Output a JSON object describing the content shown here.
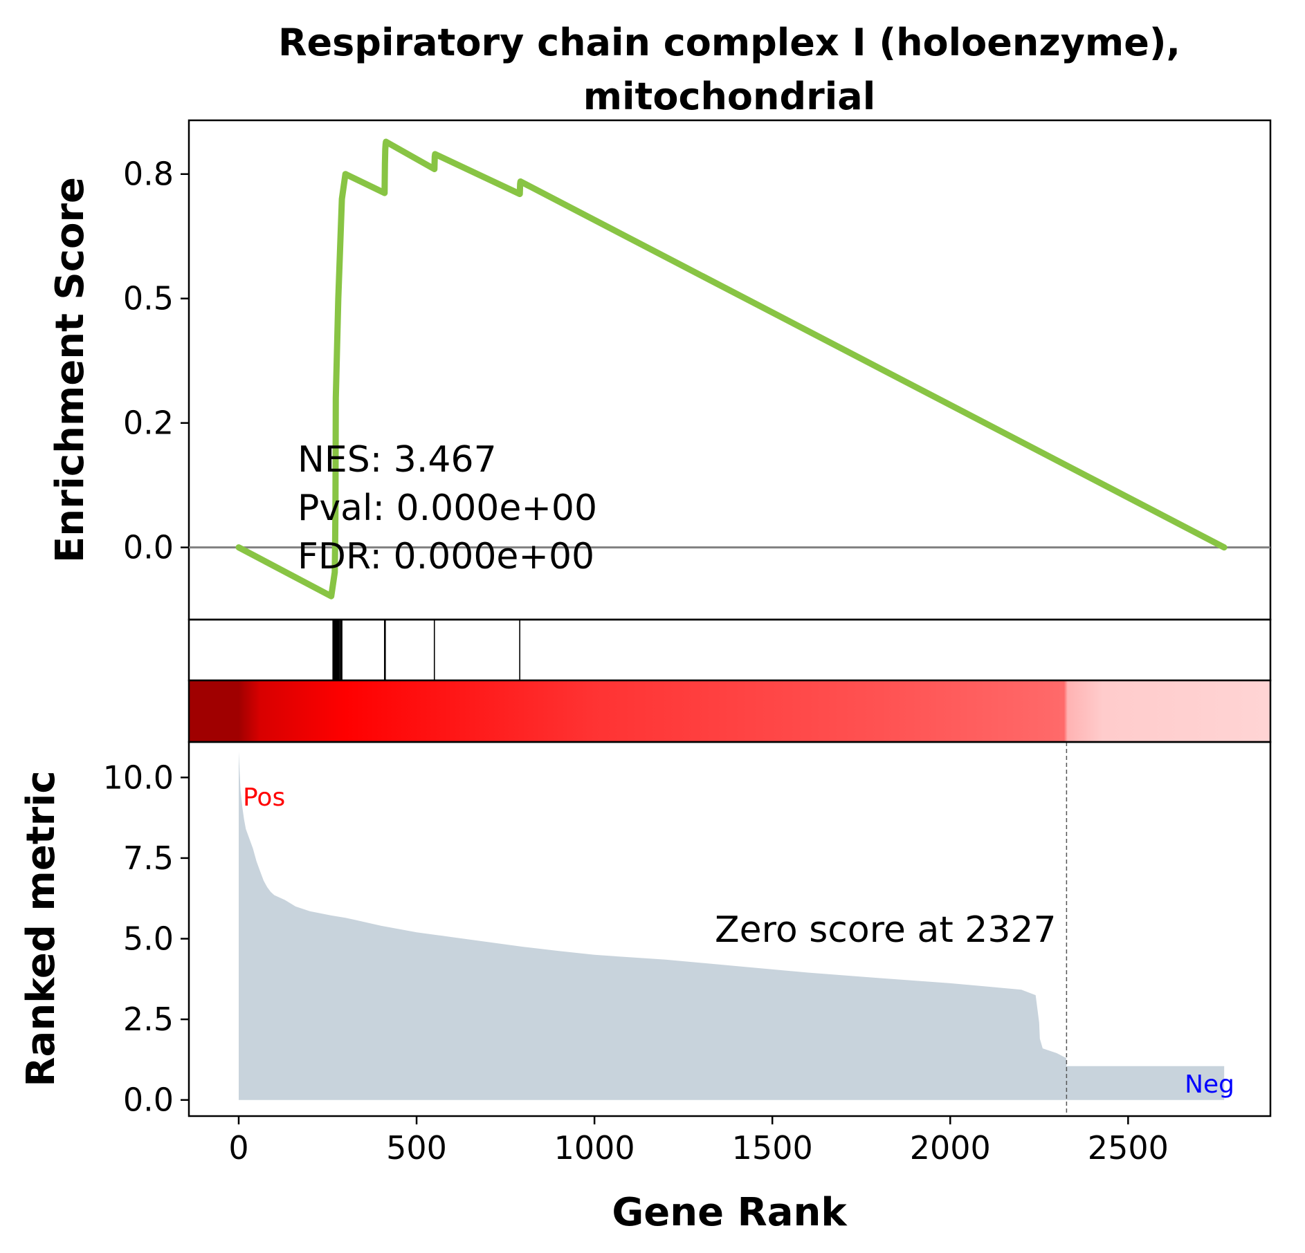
{
  "chart_data": {
    "type": "line",
    "title": "Respiratory chain complex I (holoenzyme),\nmitochondrial",
    "xlabel": "Gene Rank",
    "es_panel": {
      "ylabel": "Enrichment Score",
      "ylim": [
        -0.145,
        0.858
      ],
      "yticks": [
        0.0,
        0.25,
        0.5,
        0.75
      ],
      "ytick_labels": [
        "0.0",
        "0.2",
        "0.5",
        "0.8"
      ],
      "series": [
        {
          "x": [
            0,
            260,
            270,
            271,
            272,
            273,
            280,
            290,
            300,
            410,
            411,
            412,
            413,
            414,
            550,
            551,
            552,
            790,
            791,
            792,
            2770
          ],
          "y": [
            0.0,
            -0.098,
            -0.05,
            0.0,
            0.08,
            0.3,
            0.5,
            0.7,
            0.75,
            0.712,
            0.77,
            0.8,
            0.81,
            0.815,
            0.76,
            0.785,
            0.79,
            0.71,
            0.73,
            0.735,
            0.0
          ],
          "color": "#88c444"
        }
      ],
      "zero_line_color": "#808080",
      "annotations": {
        "nes": "NES: 3.467",
        "pval": "Pval: 0.000e+00",
        "fdr": "FDR: 0.000e+00"
      }
    },
    "hits": [
      265,
      268,
      270,
      272,
      274,
      276,
      278,
      280,
      282,
      285,
      288,
      290,
      410,
      412,
      550,
      790
    ],
    "heatmap": {
      "stops": [
        {
          "x": 0,
          "color": "#a00000"
        },
        {
          "x": 60,
          "color": "#d80000"
        },
        {
          "x": 300,
          "color": "#ff0000"
        },
        {
          "x": 1000,
          "color": "#ff3333"
        },
        {
          "x": 1800,
          "color": "#ff5252"
        },
        {
          "x": 2320,
          "color": "#ff6a6a"
        },
        {
          "x": 2330,
          "color": "#ffb3b3"
        },
        {
          "x": 2430,
          "color": "#ffcccc"
        },
        {
          "x": 2900,
          "color": "#ffd4d4"
        }
      ]
    },
    "rank_panel": {
      "ylabel": "Ranked metric",
      "ylim": [
        -0.5,
        11.1
      ],
      "yticks": [
        0.0,
        2.5,
        5.0,
        7.5,
        10.0
      ],
      "ytick_labels": [
        "0.0",
        "2.5",
        "5.0",
        "7.5",
        "10.0"
      ],
      "fill_color": "#c8d3dc",
      "series": {
        "x": [
          0,
          5,
          10,
          15,
          20,
          30,
          40,
          50,
          60,
          70,
          80,
          90,
          100,
          130,
          160,
          200,
          260,
          300,
          400,
          500,
          600,
          700,
          800,
          900,
          1000,
          1200,
          1400,
          1600,
          1800,
          2000,
          2100,
          2200,
          2240,
          2250,
          2252,
          2260,
          2300,
          2326,
          2327,
          2770
        ],
        "y": [
          10.8,
          9.6,
          9.1,
          8.7,
          8.4,
          8.1,
          7.8,
          7.4,
          7.1,
          6.8,
          6.6,
          6.45,
          6.35,
          6.2,
          6.0,
          5.85,
          5.72,
          5.65,
          5.4,
          5.2,
          5.05,
          4.9,
          4.75,
          4.62,
          4.5,
          4.35,
          4.15,
          3.95,
          3.78,
          3.62,
          3.52,
          3.42,
          3.25,
          2.4,
          1.9,
          1.6,
          1.45,
          1.3,
          1.05,
          1.05
        ]
      },
      "zero_score_rank": 2327,
      "zero_text": "Zero score at 2327",
      "pos_label": "Pos",
      "neg_label": "Neg",
      "pos_color": "#ff0000",
      "neg_color": "#0000ff"
    },
    "xlim": [
      -140,
      2900
    ],
    "xticks": [
      0,
      500,
      1000,
      1500,
      2000,
      2500
    ],
    "xtick_labels": [
      "0",
      "500",
      "1000",
      "1500",
      "2000",
      "2500"
    ]
  }
}
